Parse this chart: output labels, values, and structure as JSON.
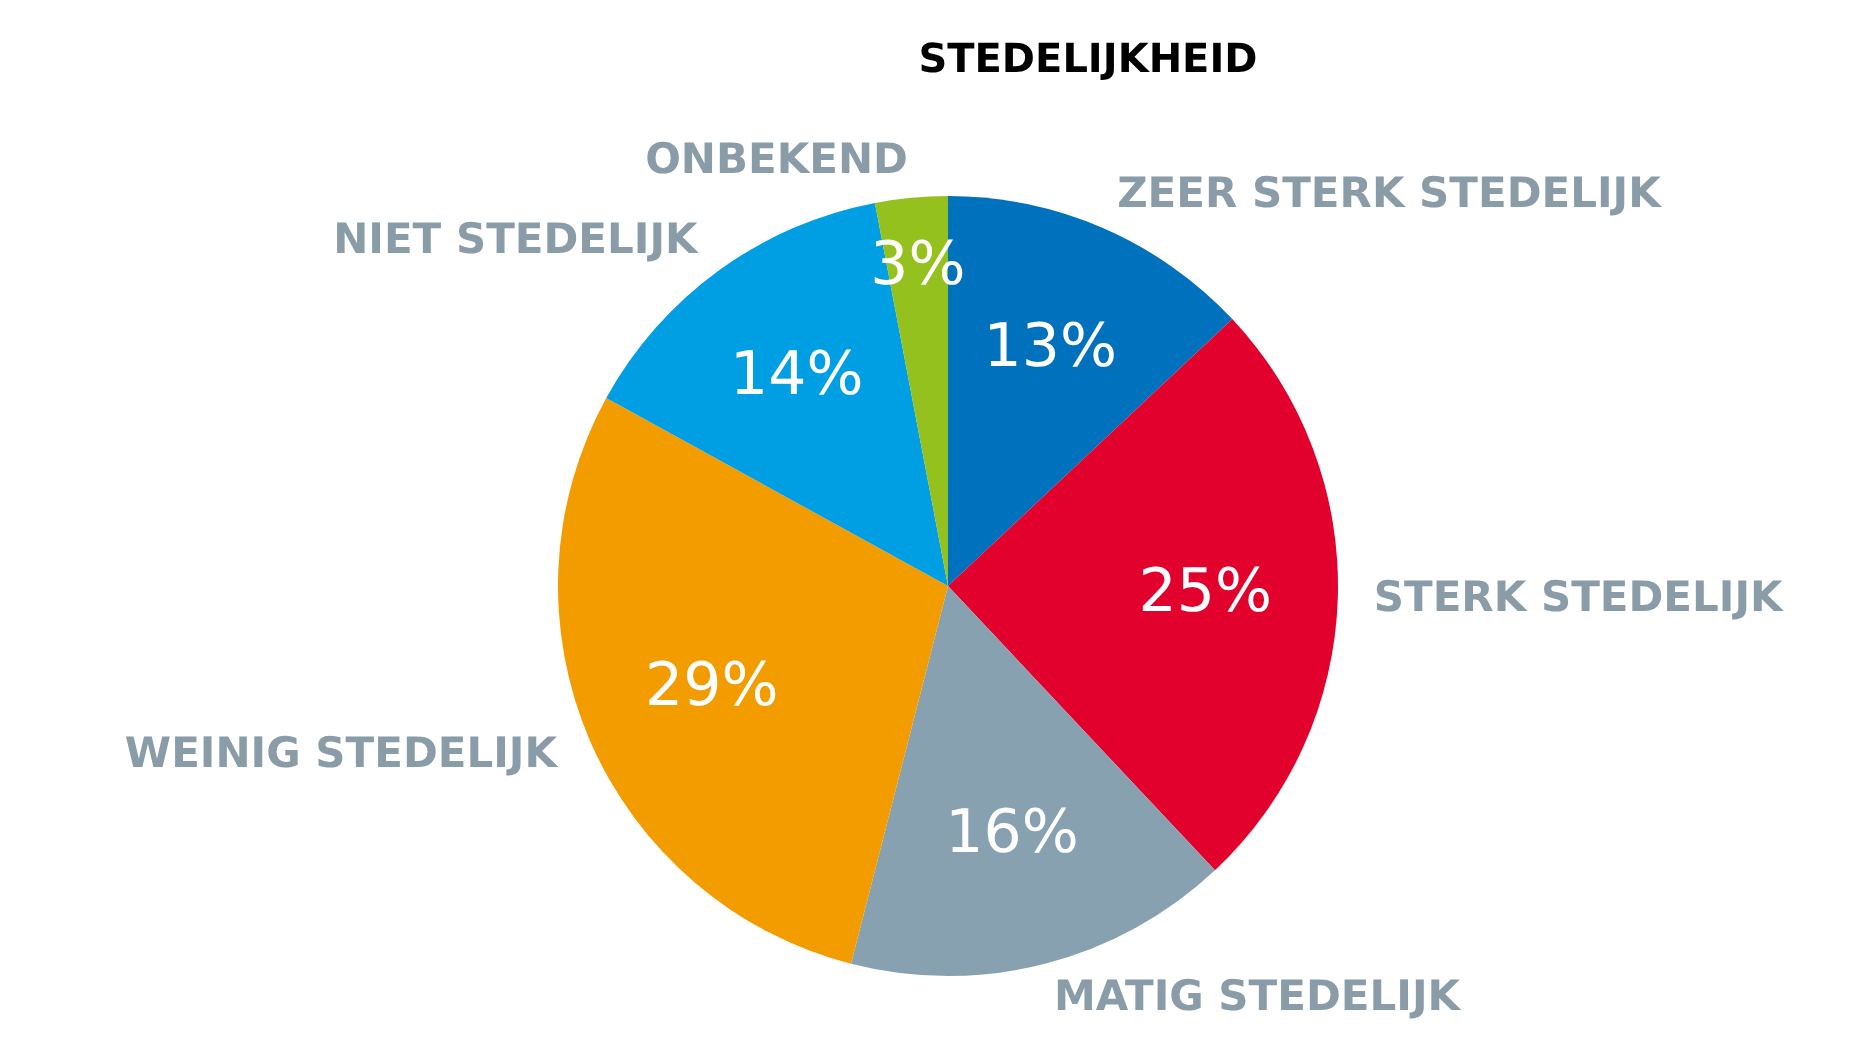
{
  "chart_data": {
    "type": "pie",
    "title": "STEDELIJKHEID",
    "categories": [
      "ZEER STERK STEDELIJK",
      "STERK STEDELIJK",
      "MATIG STEDELIJK",
      "WEINIG STEDELIJK",
      "NIET STEDELIJK",
      "ONBEKEND"
    ],
    "values": [
      13,
      25,
      16,
      29,
      14,
      3
    ],
    "colors": [
      "#0071bc",
      "#e2002d",
      "#87a1b0",
      "#f39c00",
      "#009fe3",
      "#95c11f"
    ],
    "value_labels": [
      "13%",
      "25%",
      "16%",
      "29%",
      "14%",
      "3%"
    ]
  }
}
